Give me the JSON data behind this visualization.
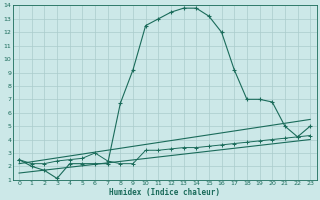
{
  "xlabel": "Humidex (Indice chaleur)",
  "background_color": "#cce8e8",
  "grid_color": "#aacccc",
  "line_color": "#1a6b5a",
  "xlim": [
    -0.5,
    23.5
  ],
  "ylim": [
    1,
    14
  ],
  "xticks": [
    0,
    1,
    2,
    3,
    4,
    5,
    6,
    7,
    8,
    9,
    10,
    11,
    12,
    13,
    14,
    15,
    16,
    17,
    18,
    19,
    20,
    21,
    22,
    23
  ],
  "yticks": [
    1,
    2,
    3,
    4,
    5,
    6,
    7,
    8,
    9,
    10,
    11,
    12,
    13,
    14
  ],
  "series_main": {
    "x": [
      0,
      1,
      2,
      3,
      4,
      5,
      6,
      7,
      8,
      9,
      10,
      11,
      12,
      13,
      14,
      15,
      16,
      17,
      18,
      19,
      20,
      21,
      22,
      23
    ],
    "y": [
      2.5,
      2.0,
      1.7,
      1.1,
      2.2,
      2.2,
      2.2,
      2.2,
      6.7,
      9.2,
      12.5,
      13.0,
      13.5,
      13.8,
      13.8,
      13.2,
      12.0,
      9.2,
      7.0,
      7.0,
      6.8,
      5.0,
      4.2,
      5.0
    ]
  },
  "series_low": {
    "x": [
      0,
      1,
      2,
      3,
      4,
      5,
      6,
      7,
      8,
      9,
      10,
      11,
      12,
      13,
      14,
      15,
      16,
      17,
      18,
      19,
      20,
      21,
      22,
      23
    ],
    "y": [
      2.5,
      2.2,
      2.2,
      2.4,
      2.5,
      2.6,
      3.0,
      2.4,
      2.2,
      2.2,
      3.2,
      3.2,
      3.3,
      3.4,
      3.4,
      3.5,
      3.6,
      3.7,
      3.8,
      3.9,
      4.0,
      4.1,
      4.2,
      4.3
    ]
  },
  "line1": {
    "x": [
      0,
      23
    ],
    "y": [
      2.2,
      5.5
    ]
  },
  "line2": {
    "x": [
      0,
      23
    ],
    "y": [
      1.5,
      4.0
    ]
  }
}
